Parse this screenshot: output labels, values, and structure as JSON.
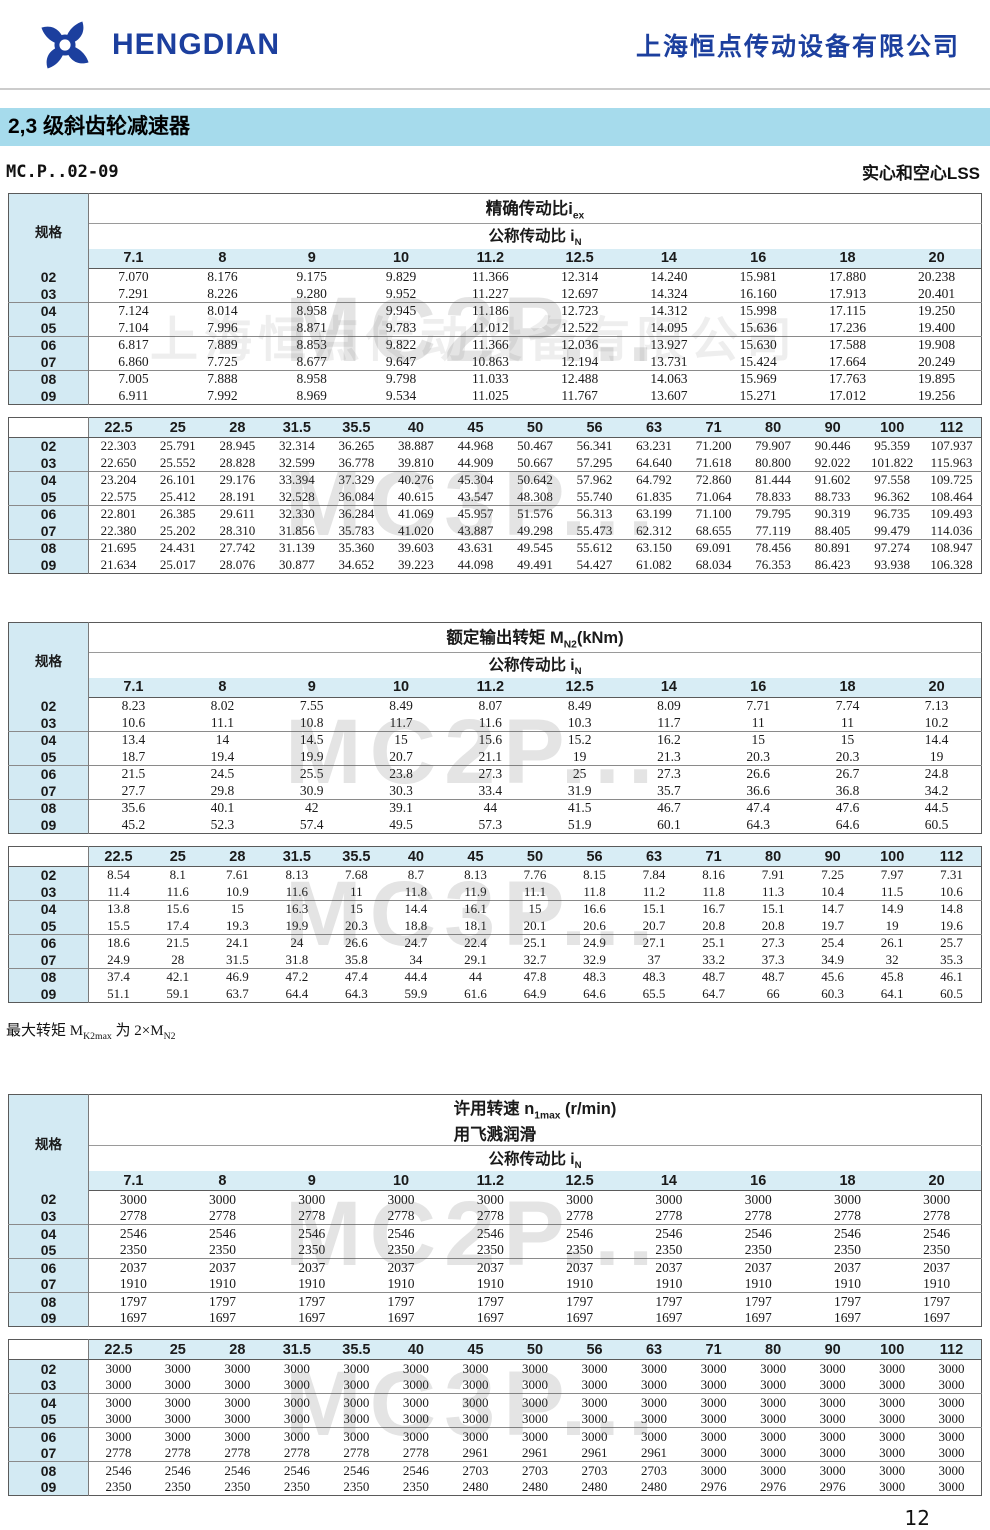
{
  "header": {
    "logo_text": "HENGDIAN",
    "company_name": "上海恒点传动设备有限公司"
  },
  "title_bar": {
    "text": "2,3 级斜齿轮减速器"
  },
  "sub_row": {
    "left": "MC.P..02-09",
    "right": "实心和空心LSS"
  },
  "labels": {
    "spec": "规格",
    "nominal": [
      {
        "t": "公称传动比 i"
      },
      {
        "s": "N"
      }
    ]
  },
  "titles": {
    "ratio": [
      {
        "t": "精确传动比i"
      },
      {
        "s": "ex"
      }
    ],
    "torque": [
      {
        "t": "额定输出转矩 M"
      },
      {
        "s": "N2"
      },
      {
        "t": "(kNm)"
      }
    ],
    "speed1": [
      {
        "t": "许用转速 n"
      },
      {
        "s": "1max"
      },
      {
        "t": " (r/min)"
      }
    ],
    "speed2": [
      {
        "t": "用飞溅润滑"
      }
    ]
  },
  "row_labels": [
    "02",
    "03",
    "04",
    "05",
    "06",
    "07",
    "08",
    "09"
  ],
  "cols_a": [
    "7.1",
    "8",
    "9",
    "10",
    "11.2",
    "12.5",
    "14",
    "16",
    "18",
    "20"
  ],
  "cols_b": [
    "22.5",
    "25",
    "28",
    "31.5",
    "35.5",
    "40",
    "45",
    "50",
    "56",
    "63",
    "71",
    "80",
    "90",
    "100",
    "112"
  ],
  "tables": {
    "ratio_a": [
      [
        "7.070",
        "8.176",
        "9.175",
        "9.829",
        "11.366",
        "12.314",
        "14.240",
        "15.981",
        "17.880",
        "20.238"
      ],
      [
        "7.291",
        "8.226",
        "9.280",
        "9.952",
        "11.227",
        "12.697",
        "14.324",
        "16.160",
        "17.913",
        "20.401"
      ],
      [
        "7.124",
        "8.014",
        "8.958",
        "9.945",
        "11.186",
        "12.723",
        "14.312",
        "15.998",
        "17.115",
        "19.250"
      ],
      [
        "7.104",
        "7.996",
        "8.871",
        "9.783",
        "11.012",
        "12.522",
        "14.095",
        "15.636",
        "17.236",
        "19.400"
      ],
      [
        "6.817",
        "7.889",
        "8.853",
        "9.822",
        "11.366",
        "12.036",
        "13.927",
        "15.630",
        "17.588",
        "19.908"
      ],
      [
        "6.860",
        "7.725",
        "8.677",
        "9.647",
        "10.863",
        "12.194",
        "13.731",
        "15.424",
        "17.664",
        "20.249"
      ],
      [
        "7.005",
        "7.888",
        "8.958",
        "9.798",
        "11.033",
        "12.488",
        "14.063",
        "15.969",
        "17.763",
        "19.895"
      ],
      [
        "6.911",
        "7.992",
        "8.969",
        "9.534",
        "11.025",
        "11.767",
        "13.607",
        "15.271",
        "17.012",
        "19.256"
      ]
    ],
    "ratio_b": [
      [
        "22.303",
        "25.791",
        "28.945",
        "32.314",
        "36.265",
        "38.887",
        "44.968",
        "50.467",
        "56.341",
        "63.231",
        "71.200",
        "79.907",
        "90.446",
        "95.359",
        "107.937"
      ],
      [
        "22.650",
        "25.552",
        "28.828",
        "32.599",
        "36.778",
        "39.810",
        "44.909",
        "50.667",
        "57.295",
        "64.640",
        "71.618",
        "80.800",
        "92.022",
        "101.822",
        "115.963"
      ],
      [
        "23.204",
        "26.101",
        "29.176",
        "33.394",
        "37.329",
        "40.276",
        "45.304",
        "50.642",
        "57.962",
        "64.792",
        "72.860",
        "81.444",
        "91.602",
        "97.558",
        "109.725"
      ],
      [
        "22.575",
        "25.412",
        "28.191",
        "32.528",
        "36.084",
        "40.615",
        "43.547",
        "48.308",
        "55.740",
        "61.835",
        "71.064",
        "78.833",
        "88.733",
        "96.362",
        "108.464"
      ],
      [
        "22.801",
        "26.385",
        "29.611",
        "32.330",
        "36.284",
        "41.069",
        "45.957",
        "51.576",
        "56.313",
        "63.199",
        "71.100",
        "79.795",
        "90.319",
        "96.735",
        "109.493"
      ],
      [
        "22.380",
        "25.202",
        "28.310",
        "31.856",
        "35.783",
        "41.020",
        "43.887",
        "49.298",
        "55.473",
        "62.312",
        "68.655",
        "77.119",
        "88.405",
        "99.479",
        "114.036"
      ],
      [
        "21.695",
        "24.431",
        "27.742",
        "31.139",
        "35.360",
        "39.603",
        "43.631",
        "49.545",
        "55.612",
        "63.150",
        "69.091",
        "78.456",
        "80.891",
        "97.274",
        "108.947"
      ],
      [
        "21.634",
        "25.017",
        "28.076",
        "30.877",
        "34.652",
        "39.223",
        "44.098",
        "49.491",
        "54.427",
        "61.082",
        "68.034",
        "76.353",
        "86.423",
        "93.938",
        "106.328"
      ]
    ],
    "torque_a": [
      [
        "8.23",
        "8.02",
        "7.55",
        "8.49",
        "8.07",
        "8.49",
        "8.09",
        "7.71",
        "7.74",
        "7.13"
      ],
      [
        "10.6",
        "11.1",
        "10.8",
        "11.7",
        "11.6",
        "10.3",
        "11.7",
        "11",
        "11",
        "10.2"
      ],
      [
        "13.4",
        "14",
        "14.5",
        "15",
        "15.6",
        "15.2",
        "16.2",
        "15",
        "15",
        "14.4"
      ],
      [
        "18.7",
        "19.4",
        "19.9",
        "20.7",
        "21.1",
        "19",
        "21.3",
        "20.3",
        "20.3",
        "19"
      ],
      [
        "21.5",
        "24.5",
        "25.5",
        "23.8",
        "27.3",
        "25",
        "27.3",
        "26.6",
        "26.7",
        "24.8"
      ],
      [
        "27.7",
        "29.8",
        "30.9",
        "30.3",
        "33.4",
        "31.9",
        "35.7",
        "36.6",
        "36.8",
        "34.2"
      ],
      [
        "35.6",
        "40.1",
        "42",
        "39.1",
        "44",
        "41.5",
        "46.7",
        "47.4",
        "47.6",
        "44.5"
      ],
      [
        "45.2",
        "52.3",
        "57.4",
        "49.5",
        "57.3",
        "51.9",
        "60.1",
        "64.3",
        "64.6",
        "60.5"
      ]
    ],
    "torque_b": [
      [
        "8.54",
        "8.1",
        "7.61",
        "8.13",
        "7.68",
        "8.7",
        "8.13",
        "7.76",
        "8.15",
        "7.84",
        "8.16",
        "7.91",
        "7.25",
        "7.97",
        "7.31"
      ],
      [
        "11.4",
        "11.6",
        "10.9",
        "11.6",
        "11",
        "11.8",
        "11.9",
        "11.1",
        "11.8",
        "11.2",
        "11.8",
        "11.3",
        "10.4",
        "11.5",
        "10.6"
      ],
      [
        "13.8",
        "15.6",
        "15",
        "16.3",
        "15",
        "14.4",
        "16.1",
        "15",
        "16.6",
        "15.1",
        "16.7",
        "15.1",
        "14.7",
        "14.9",
        "14.8"
      ],
      [
        "15.5",
        "17.4",
        "19.3",
        "19.9",
        "20.3",
        "18.8",
        "18.1",
        "20.1",
        "20.6",
        "20.7",
        "20.8",
        "20.8",
        "19.7",
        "19",
        "19.6"
      ],
      [
        "18.6",
        "21.5",
        "24.1",
        "24",
        "26.6",
        "24.7",
        "22.4",
        "25.1",
        "24.9",
        "27.1",
        "25.1",
        "27.3",
        "25.4",
        "26.1",
        "25.7"
      ],
      [
        "24.9",
        "28",
        "31.5",
        "31.8",
        "35.8",
        "34",
        "29.1",
        "32.7",
        "32.9",
        "37",
        "33.2",
        "37.3",
        "34.9",
        "32",
        "35.3"
      ],
      [
        "37.4",
        "42.1",
        "46.9",
        "47.2",
        "47.4",
        "44.4",
        "44",
        "47.8",
        "48.3",
        "48.3",
        "48.7",
        "48.7",
        "45.6",
        "45.8",
        "46.1"
      ],
      [
        "51.1",
        "59.1",
        "63.7",
        "64.4",
        "64.3",
        "59.9",
        "61.6",
        "64.9",
        "64.6",
        "65.5",
        "64.7",
        "66",
        "60.3",
        "64.1",
        "60.5"
      ]
    ],
    "speed_a": [
      [
        "3000",
        "3000",
        "3000",
        "3000",
        "3000",
        "3000",
        "3000",
        "3000",
        "3000",
        "3000"
      ],
      [
        "2778",
        "2778",
        "2778",
        "2778",
        "2778",
        "2778",
        "2778",
        "2778",
        "2778",
        "2778"
      ],
      [
        "2546",
        "2546",
        "2546",
        "2546",
        "2546",
        "2546",
        "2546",
        "2546",
        "2546",
        "2546"
      ],
      [
        "2350",
        "2350",
        "2350",
        "2350",
        "2350",
        "2350",
        "2350",
        "2350",
        "2350",
        "2350"
      ],
      [
        "2037",
        "2037",
        "2037",
        "2037",
        "2037",
        "2037",
        "2037",
        "2037",
        "2037",
        "2037"
      ],
      [
        "1910",
        "1910",
        "1910",
        "1910",
        "1910",
        "1910",
        "1910",
        "1910",
        "1910",
        "1910"
      ],
      [
        "1797",
        "1797",
        "1797",
        "1797",
        "1797",
        "1797",
        "1797",
        "1797",
        "1797",
        "1797"
      ],
      [
        "1697",
        "1697",
        "1697",
        "1697",
        "1697",
        "1697",
        "1697",
        "1697",
        "1697",
        "1697"
      ]
    ],
    "speed_b": [
      [
        "3000",
        "3000",
        "3000",
        "3000",
        "3000",
        "3000",
        "3000",
        "3000",
        "3000",
        "3000",
        "3000",
        "3000",
        "3000",
        "3000",
        "3000"
      ],
      [
        "3000",
        "3000",
        "3000",
        "3000",
        "3000",
        "3000",
        "3000",
        "3000",
        "3000",
        "3000",
        "3000",
        "3000",
        "3000",
        "3000",
        "3000"
      ],
      [
        "3000",
        "3000",
        "3000",
        "3000",
        "3000",
        "3000",
        "3000",
        "3000",
        "3000",
        "3000",
        "3000",
        "3000",
        "3000",
        "3000",
        "3000"
      ],
      [
        "3000",
        "3000",
        "3000",
        "3000",
        "3000",
        "3000",
        "3000",
        "3000",
        "3000",
        "3000",
        "3000",
        "3000",
        "3000",
        "3000",
        "3000"
      ],
      [
        "3000",
        "3000",
        "3000",
        "3000",
        "3000",
        "3000",
        "3000",
        "3000",
        "3000",
        "3000",
        "3000",
        "3000",
        "3000",
        "3000",
        "3000"
      ],
      [
        "2778",
        "2778",
        "2778",
        "2778",
        "2778",
        "2778",
        "2961",
        "2961",
        "2961",
        "2961",
        "3000",
        "3000",
        "3000",
        "3000",
        "3000"
      ],
      [
        "2546",
        "2546",
        "2546",
        "2546",
        "2546",
        "2546",
        "2703",
        "2703",
        "2703",
        "2703",
        "3000",
        "3000",
        "3000",
        "3000",
        "3000"
      ],
      [
        "2350",
        "2350",
        "2350",
        "2350",
        "2350",
        "2350",
        "2480",
        "2480",
        "2480",
        "2480",
        "2976",
        "2976",
        "2976",
        "3000",
        "3000"
      ]
    ]
  },
  "note": [
    {
      "t": "最大转矩 M"
    },
    {
      "s": "K2max"
    },
    {
      "t": " 为 2×M"
    },
    {
      "s": "N2"
    }
  ],
  "watermarks": {
    "ghost_company": "上海恒点传动设备有限公司",
    "marks": [
      "MC2P...",
      "MC3P...",
      "MC2P...",
      "MC3P...",
      "MC2P...",
      "MC3P..."
    ]
  },
  "page_number": "12",
  "colors": {
    "brand_blue": "#1c3f9e",
    "title_band": "#a6dbec",
    "cell_band": "#d8edf5"
  }
}
